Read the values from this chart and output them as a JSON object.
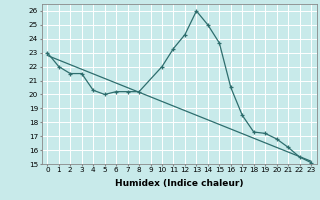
{
  "xlabel": "Humidex (Indice chaleur)",
  "bg_color": "#c8eaea",
  "grid_color": "#ffffff",
  "line_color": "#2e6e6e",
  "xlim": [
    -0.5,
    23.5
  ],
  "ylim": [
    15,
    26.5
  ],
  "yticks": [
    15,
    16,
    17,
    18,
    19,
    20,
    21,
    22,
    23,
    24,
    25,
    26
  ],
  "xticks": [
    0,
    1,
    2,
    3,
    4,
    5,
    6,
    7,
    8,
    9,
    10,
    11,
    12,
    13,
    14,
    15,
    16,
    17,
    18,
    19,
    20,
    21,
    22,
    23
  ],
  "series1_x": [
    0,
    1,
    2,
    3,
    4,
    5,
    6,
    7,
    8,
    10,
    11,
    12,
    13,
    14,
    15,
    16,
    17,
    18,
    19,
    20,
    21,
    22,
    23
  ],
  "series1_y": [
    23.0,
    22.0,
    21.5,
    21.5,
    20.3,
    20.0,
    20.2,
    20.2,
    20.2,
    22.0,
    23.3,
    24.3,
    26.0,
    25.0,
    23.7,
    20.5,
    18.5,
    17.3,
    17.2,
    16.8,
    16.2,
    15.5,
    15.1
  ],
  "trend_x": [
    0,
    23
  ],
  "trend_y": [
    22.8,
    15.2
  ],
  "xlabel_fontsize": 6.5,
  "tick_fontsize": 5.2
}
